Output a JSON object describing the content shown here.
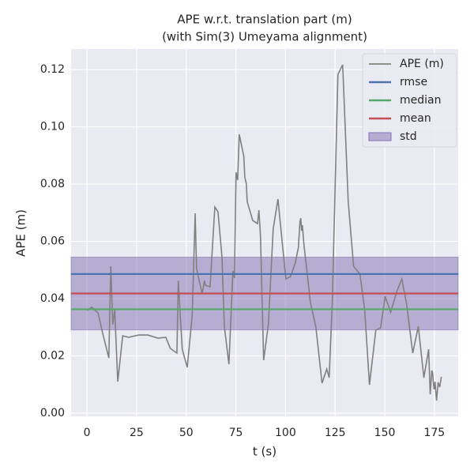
{
  "chart_data": {
    "type": "line",
    "title": "APE w.r.t. translation part (m)",
    "subtitle": "(with Sim(3) Umeyama alignment)",
    "x_label": "t (s)",
    "y_label": "APE (m)",
    "xlim": [
      -8,
      187
    ],
    "ylim": [
      -0.0011,
      0.1272
    ],
    "xticks": [
      0,
      25,
      50,
      75,
      100,
      125,
      150,
      175
    ],
    "yticks": [
      {
        "value": 0,
        "label": "0.00"
      },
      {
        "value": 0.02,
        "label": "0.02"
      },
      {
        "value": 0.04,
        "label": "0.04"
      },
      {
        "value": 0.06,
        "label": "0.06"
      },
      {
        "value": 0.08,
        "label": "0.08"
      },
      {
        "value": 0.1,
        "label": "0.10"
      },
      {
        "value": 0.12,
        "label": "0.12"
      }
    ],
    "grid": true,
    "legend": "upper right",
    "series": [
      {
        "name": "APE (m)",
        "color": "#808080",
        "x": [
          0,
          2.4,
          5.6,
          8,
          11,
          12,
          13,
          14,
          14.3,
          15.5,
          18,
          21,
          26,
          30.6,
          35.8,
          39.7,
          42,
          45.3,
          46,
          47,
          48,
          50.5,
          53,
          54.5,
          55.2,
          58,
          59.2,
          59.6,
          62,
          64.4,
          66,
          68,
          69.2,
          71.5,
          73.5,
          74.3,
          75.1,
          75.9,
          76.7,
          79,
          79.5,
          80.3,
          80.7,
          83.5,
          85.9,
          86.6,
          87.4,
          89,
          91.4,
          93.8,
          96.2,
          98.6,
          100.2,
          102.5,
          104.9,
          106.5,
          107.3,
          107.7,
          108.1,
          108.5,
          109.3,
          112,
          112.5,
          115.3,
          118.4,
          120.8,
          122,
          123.6,
          126.4,
          128.8,
          131.6,
          134.3,
          137.5,
          139.9,
          142.3,
          145.5,
          147.9,
          150.2,
          153,
          156.2,
          158.6,
          161,
          164.1,
          166.9,
          169.7,
          172.1,
          172.9,
          173.7,
          174.1,
          174.5,
          174.9,
          175.3,
          176.1,
          176.9,
          177.7,
          178.5
        ],
        "values": [
          0.0359,
          0.037,
          0.035,
          0.0276,
          0.0193,
          0.0513,
          0.031,
          0.036,
          0.0306,
          0.011,
          0.027,
          0.0265,
          0.0273,
          0.0273,
          0.0262,
          0.0265,
          0.0226,
          0.021,
          0.0463,
          0.034,
          0.0223,
          0.016,
          0.034,
          0.0698,
          0.0505,
          0.0417,
          0.0463,
          0.0447,
          0.0441,
          0.072,
          0.0703,
          0.0546,
          0.0303,
          0.0171,
          0.0497,
          0.0472,
          0.0841,
          0.0814,
          0.0974,
          0.0897,
          0.0825,
          0.08,
          0.0739,
          0.0673,
          0.0662,
          0.0709,
          0.062,
          0.0185,
          0.0312,
          0.0643,
          0.0748,
          0.0579,
          0.0469,
          0.0477,
          0.0524,
          0.0579,
          0.067,
          0.0681,
          0.0637,
          0.0657,
          0.0588,
          0.0422,
          0.0389,
          0.0301,
          0.0105,
          0.0154,
          0.0124,
          0.0394,
          0.1183,
          0.1217,
          0.0739,
          0.0513,
          0.0486,
          0.0361,
          0.0099,
          0.029,
          0.0298,
          0.0408,
          0.0353,
          0.0428,
          0.0469,
          0.0381,
          0.021,
          0.0303,
          0.0124,
          0.0223,
          0.0066,
          0.0149,
          0.0141,
          0.0105,
          0.0083,
          0.011,
          0.0044,
          0.0108,
          0.0091,
          0.0127
        ]
      }
    ],
    "stats": [
      {
        "name": "rmse",
        "color": "#4c72b0",
        "value": 0.0486
      },
      {
        "name": "median",
        "color": "#55a868",
        "value": 0.0363
      },
      {
        "name": "mean",
        "color": "#c44e52",
        "value": 0.0418
      }
    ],
    "std": {
      "name": "std",
      "color": "#8172b2",
      "value": 0.0127
    }
  }
}
